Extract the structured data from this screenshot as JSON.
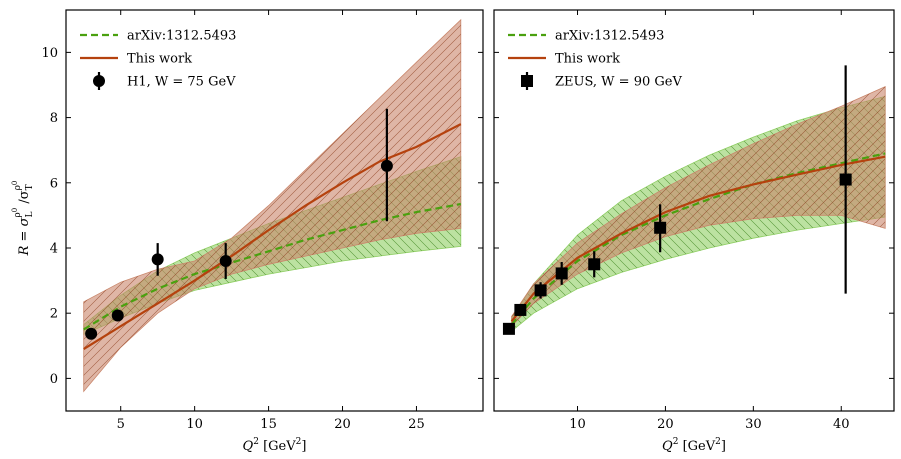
{
  "figure": {
    "ylabel": "R = σ_L^ρ0 / σ_T^ρ0",
    "ylabel_parts": {
      "r": "R = σ",
      "sub1": "L",
      "sup1": "ρ",
      "supsup1": "0",
      "slash": " /σ",
      "sub2": "T",
      "sup2": "ρ",
      "supsup2": "0"
    }
  },
  "chart_data": [
    {
      "type": "line",
      "panel": "left",
      "xlabel": "Q² [GeV²]",
      "xlabel_parts": {
        "q": "Q",
        "sup": "2",
        "unit": " [GeV",
        "unit_sup": "2",
        "close": "]"
      },
      "ylabel": "R = σ_L^ρ0 / σ_T^ρ0",
      "xlim": [
        1.3,
        29.5
      ],
      "ylim": [
        -1.0,
        11.3
      ],
      "xticks": [
        5,
        10,
        15,
        20,
        25
      ],
      "yticks": [
        0,
        2,
        4,
        6,
        8,
        10
      ],
      "legend_position": "top-left",
      "grid": false,
      "series": [
        {
          "name": "arXiv:1312.5493",
          "kind": "line",
          "style": "dashed",
          "color": "#4aa10f",
          "x": [
            2.5,
            5,
            7.5,
            10,
            12.5,
            15,
            17.5,
            20,
            22.5,
            25,
            28
          ],
          "y": [
            1.5,
            2.2,
            2.75,
            3.2,
            3.55,
            3.9,
            4.25,
            4.55,
            4.85,
            5.1,
            5.35
          ],
          "band": {
            "fill": "#8fcf63",
            "lower": [
              1.35,
              1.85,
              2.3,
              2.7,
              2.95,
              3.2,
              3.4,
              3.6,
              3.75,
              3.9,
              4.05
            ],
            "upper": [
              1.65,
              2.55,
              3.3,
              3.85,
              4.3,
              4.75,
              5.15,
              5.55,
              5.95,
              6.35,
              6.8
            ]
          }
        },
        {
          "name": "This work",
          "kind": "line",
          "style": "solid",
          "color": "#b5420e",
          "x": [
            2.5,
            5,
            7.5,
            10,
            12.5,
            15,
            17.5,
            20,
            22.5,
            25,
            28
          ],
          "y": [
            0.9,
            1.6,
            2.3,
            3.0,
            3.75,
            4.55,
            5.3,
            6.0,
            6.65,
            7.1,
            7.8
          ],
          "band": {
            "fill": "#c9866b",
            "lower": [
              -0.4,
              0.95,
              2.0,
              2.75,
              3.2,
              3.5,
              3.75,
              4.0,
              4.25,
              4.45,
              4.6
            ],
            "upper": [
              2.35,
              2.95,
              3.35,
              3.6,
              4.3,
              5.3,
              6.4,
              7.5,
              8.6,
              9.7,
              11.0
            ]
          }
        },
        {
          "name": "H1, W = 75 GeV",
          "kind": "points",
          "marker": "circle",
          "color": "#000000",
          "x": [
            3.0,
            4.8,
            7.5,
            12.1,
            23.0
          ],
          "y": [
            1.37,
            1.93,
            3.65,
            3.6,
            6.52
          ],
          "yerr_low": [
            0.1,
            0.12,
            0.5,
            0.55,
            1.7
          ],
          "yerr_high": [
            0.1,
            0.12,
            0.5,
            0.55,
            1.75
          ]
        }
      ]
    },
    {
      "type": "line",
      "panel": "right",
      "xlabel": "Q² [GeV²]",
      "xlabel_parts": {
        "q": "Q",
        "sup": "2",
        "unit": " [GeV",
        "unit_sup": "2",
        "close": "]"
      },
      "xlim": [
        0.5,
        46
      ],
      "ylim": [
        -1.0,
        11.3
      ],
      "xticks": [
        10,
        20,
        30,
        40
      ],
      "yticks": [
        0,
        2,
        4,
        6,
        8,
        10
      ],
      "legend_position": "top-left",
      "grid": false,
      "series": [
        {
          "name": "arXiv:1312.5493",
          "kind": "line",
          "style": "dashed",
          "color": "#4aa10f",
          "x": [
            2.5,
            5,
            10,
            15,
            20,
            25,
            30,
            35,
            40,
            45
          ],
          "y": [
            1.65,
            2.45,
            3.6,
            4.4,
            5.0,
            5.5,
            5.95,
            6.3,
            6.6,
            6.9
          ],
          "band": {
            "fill": "#8fcf63",
            "lower": [
              1.45,
              2.0,
              2.75,
              3.25,
              3.65,
              4.0,
              4.3,
              4.55,
              4.75,
              4.95
            ],
            "upper": [
              1.85,
              2.9,
              4.4,
              5.45,
              6.2,
              6.85,
              7.4,
              7.9,
              8.3,
              8.65
            ]
          }
        },
        {
          "name": "This work",
          "kind": "line",
          "style": "solid",
          "color": "#b5420e",
          "x": [
            2.5,
            5,
            10,
            15,
            20,
            25,
            30,
            35,
            40,
            45
          ],
          "y": [
            1.75,
            2.6,
            3.7,
            4.45,
            5.1,
            5.6,
            5.95,
            6.25,
            6.55,
            6.8
          ],
          "band": {
            "fill": "#c9866b",
            "lower": [
              1.6,
              2.3,
              3.2,
              3.85,
              4.35,
              4.7,
              4.9,
              5.0,
              5.0,
              4.6
            ],
            "upper": [
              1.9,
              2.9,
              4.15,
              5.05,
              5.85,
              6.55,
              7.2,
              7.8,
              8.35,
              8.95
            ]
          }
        },
        {
          "name": "ZEUS, W = 90 GeV",
          "kind": "points",
          "marker": "square",
          "color": "#000000",
          "x": [
            2.2,
            3.5,
            5.8,
            8.2,
            11.9,
            19.4,
            40.5
          ],
          "y": [
            1.52,
            2.1,
            2.7,
            3.22,
            3.5,
            4.62,
            6.1
          ],
          "yerr_low": [
            0.12,
            0.12,
            0.25,
            0.35,
            0.4,
            0.75,
            3.5
          ],
          "yerr_high": [
            0.12,
            0.12,
            0.25,
            0.35,
            0.4,
            0.72,
            3.5
          ]
        }
      ]
    }
  ]
}
